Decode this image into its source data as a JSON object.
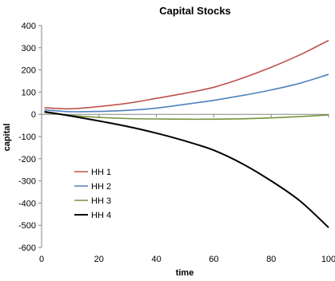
{
  "chart_data": {
    "type": "line",
    "title": "Capital Stocks",
    "xlabel": "time",
    "ylabel": "capital",
    "xlim": [
      0,
      100
    ],
    "ylim": [
      -600,
      400
    ],
    "x_ticks": [
      0,
      20,
      40,
      60,
      80,
      100
    ],
    "y_ticks": [
      400,
      300,
      200,
      100,
      0,
      -100,
      -200,
      -300,
      -400,
      -500,
      -600
    ],
    "grid": false,
    "legend_position": "left",
    "x": [
      1,
      10,
      20,
      30,
      40,
      50,
      60,
      70,
      80,
      90,
      100
    ],
    "series": [
      {
        "name": "HH 1",
        "color": "#c0504d",
        "values": [
          30,
          25,
          35,
          50,
          72,
          95,
          122,
          163,
          212,
          268,
          333
        ]
      },
      {
        "name": "HH 2",
        "color": "#4f81bd",
        "values": [
          20,
          12,
          13,
          18,
          28,
          45,
          63,
          85,
          110,
          140,
          180
        ]
      },
      {
        "name": "HH 3",
        "color": "#77933c",
        "values": [
          8,
          -5,
          -14,
          -19,
          -21,
          -22,
          -22,
          -20,
          -16,
          -10,
          -3
        ]
      },
      {
        "name": "HH 4",
        "color": "#000000",
        "values": [
          12,
          -7,
          -30,
          -55,
          -85,
          -120,
          -162,
          -223,
          -300,
          -390,
          -510
        ]
      }
    ]
  }
}
